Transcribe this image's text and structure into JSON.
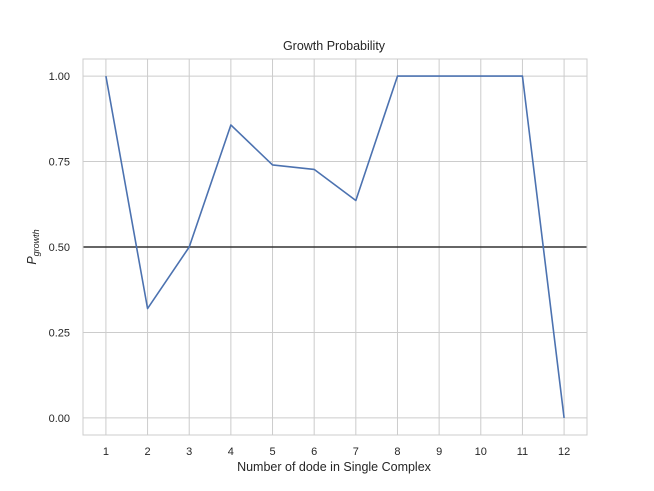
{
  "chart_data": {
    "type": "line",
    "title": "Growth Probability",
    "xlabel": "Number of dode in Single Complex",
    "ylabel_main": "P",
    "ylabel_sub": "growth",
    "x": [
      1,
      2,
      3,
      4,
      5,
      6,
      7,
      8,
      9,
      10,
      11,
      12
    ],
    "series": [
      {
        "values": [
          1.0,
          0.32,
          0.5,
          0.857,
          0.74,
          0.727,
          0.636,
          1.0,
          1.0,
          1.0,
          1.0,
          0.0
        ],
        "color": "#4c72b0"
      }
    ],
    "reference_line": {
      "y": 0.5,
      "color": "#333333"
    },
    "xlim": [
      0.45,
      12.55
    ],
    "ylim": [
      -0.05,
      1.05
    ],
    "xticks": [
      "1",
      "2",
      "3",
      "4",
      "5",
      "6",
      "7",
      "8",
      "9",
      "10",
      "11",
      "12"
    ],
    "yticks": [
      "0.00",
      "0.25",
      "0.50",
      "0.75",
      "1.00"
    ],
    "ytick_values": [
      0,
      0.25,
      0.5,
      0.75,
      1.0
    ],
    "grid": true,
    "legend": "none"
  }
}
